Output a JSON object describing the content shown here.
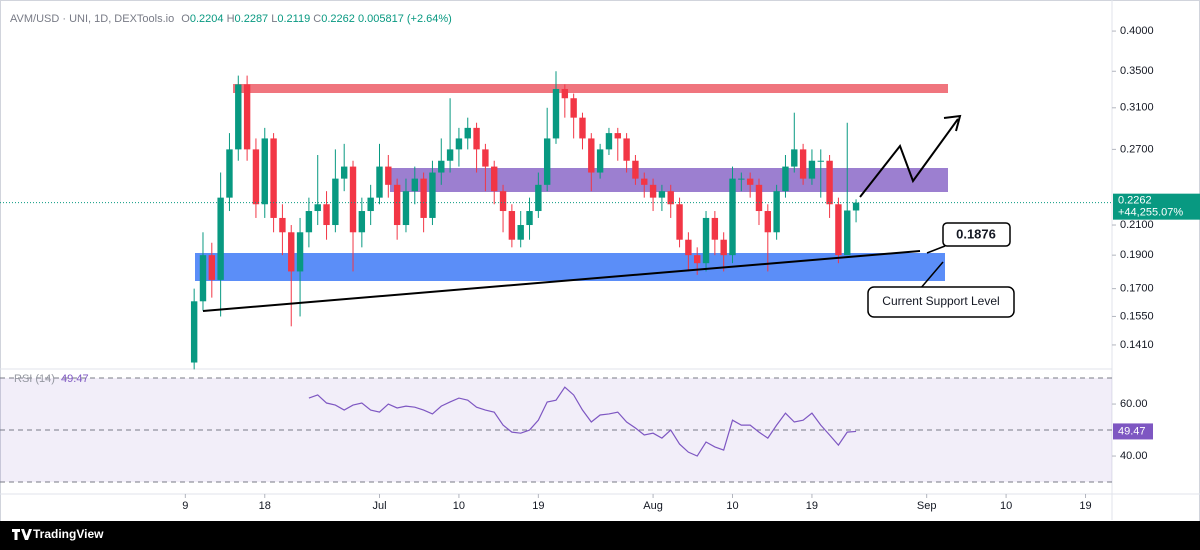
{
  "chart_data": [
    {
      "type": "candlestick",
      "symbol": "AVM/USD · UNI, 1D, DEXTools.io",
      "ohlc_labels": [
        "O",
        "H",
        "L",
        "C"
      ],
      "change": 0.005817,
      "change_pct": "(+2.64%)",
      "total_change": "+44,255.07%",
      "x": [
        "06-10",
        "06-11",
        "06-12",
        "06-13",
        "06-14",
        "06-15",
        "06-16",
        "06-17",
        "06-18",
        "06-19",
        "06-20",
        "06-21",
        "06-22",
        "06-23",
        "06-24",
        "06-25",
        "06-26",
        "06-27",
        "06-28",
        "06-29",
        "06-30",
        "07-01",
        "07-02",
        "07-03",
        "07-04",
        "07-05",
        "07-06",
        "07-07",
        "07-08",
        "07-09",
        "07-10",
        "07-11",
        "07-12",
        "07-13",
        "07-14",
        "07-15",
        "07-16",
        "07-17",
        "07-18",
        "07-19",
        "07-20",
        "07-21",
        "07-22",
        "07-23",
        "07-24",
        "07-25",
        "07-26",
        "07-27",
        "07-28",
        "07-29",
        "07-30",
        "07-31",
        "08-01",
        "08-02",
        "08-03",
        "08-04",
        "08-05",
        "08-06",
        "08-07",
        "08-08",
        "08-09",
        "08-10",
        "08-11",
        "08-12",
        "08-13",
        "08-14",
        "08-15",
        "08-16",
        "08-17",
        "08-18",
        "08-19",
        "08-20",
        "08-21",
        "08-22",
        "08-23",
        "08-24"
      ],
      "open": [
        0.133,
        0.163,
        0.19,
        0.175,
        0.23,
        0.27,
        0.335,
        0.27,
        0.225,
        0.28,
        0.215,
        0.205,
        0.18,
        0.205,
        0.22,
        0.225,
        0.21,
        0.245,
        0.255,
        0.205,
        0.22,
        0.23,
        0.255,
        0.24,
        0.21,
        0.235,
        0.245,
        0.215,
        0.25,
        0.26,
        0.27,
        0.28,
        0.29,
        0.27,
        0.255,
        0.235,
        0.22,
        0.2,
        0.21,
        0.22,
        0.24,
        0.28,
        0.33,
        0.32,
        0.3,
        0.28,
        0.25,
        0.27,
        0.285,
        0.28,
        0.26,
        0.245,
        0.24,
        0.23,
        0.235,
        0.225,
        0.2,
        0.19,
        0.185,
        0.215,
        0.2,
        0.19,
        0.245,
        0.245,
        0.24,
        0.22,
        0.205,
        0.235,
        0.255,
        0.27,
        0.245,
        0.26,
        0.26,
        0.225,
        0.19,
        0.2204
      ],
      "high": [
        0.17,
        0.205,
        0.198,
        0.25,
        0.285,
        0.345,
        0.345,
        0.28,
        0.29,
        0.285,
        0.225,
        0.21,
        0.215,
        0.23,
        0.265,
        0.235,
        0.27,
        0.275,
        0.26,
        0.23,
        0.24,
        0.275,
        0.265,
        0.245,
        0.245,
        0.255,
        0.25,
        0.26,
        0.28,
        0.32,
        0.29,
        0.3,
        0.295,
        0.275,
        0.26,
        0.24,
        0.225,
        0.22,
        0.23,
        0.25,
        0.31,
        0.35,
        0.335,
        0.325,
        0.305,
        0.285,
        0.275,
        0.29,
        0.29,
        0.285,
        0.265,
        0.25,
        0.245,
        0.24,
        0.24,
        0.23,
        0.205,
        0.195,
        0.22,
        0.22,
        0.205,
        0.255,
        0.25,
        0.25,
        0.245,
        0.225,
        0.24,
        0.265,
        0.305,
        0.275,
        0.27,
        0.27,
        0.265,
        0.23,
        0.295,
        0.2287
      ],
      "low": [
        0.13,
        0.158,
        0.165,
        0.155,
        0.22,
        0.26,
        0.26,
        0.215,
        0.215,
        0.205,
        0.19,
        0.15,
        0.155,
        0.195,
        0.21,
        0.2,
        0.205,
        0.235,
        0.18,
        0.195,
        0.21,
        0.225,
        0.23,
        0.2,
        0.205,
        0.225,
        0.205,
        0.21,
        0.24,
        0.25,
        0.255,
        0.27,
        0.25,
        0.235,
        0.225,
        0.205,
        0.195,
        0.195,
        0.2,
        0.215,
        0.235,
        0.275,
        0.3,
        0.28,
        0.27,
        0.235,
        0.245,
        0.265,
        0.26,
        0.25,
        0.24,
        0.23,
        0.22,
        0.22,
        0.215,
        0.195,
        0.18,
        0.178,
        0.18,
        0.19,
        0.18,
        0.185,
        0.235,
        0.23,
        0.21,
        0.18,
        0.2,
        0.23,
        0.25,
        0.24,
        0.24,
        0.23,
        0.215,
        0.185,
        0.19,
        0.2119
      ],
      "close": [
        0.163,
        0.19,
        0.175,
        0.23,
        0.27,
        0.335,
        0.27,
        0.225,
        0.28,
        0.215,
        0.205,
        0.18,
        0.205,
        0.22,
        0.225,
        0.21,
        0.245,
        0.255,
        0.205,
        0.22,
        0.23,
        0.255,
        0.24,
        0.21,
        0.235,
        0.245,
        0.215,
        0.25,
        0.26,
        0.27,
        0.28,
        0.29,
        0.27,
        0.255,
        0.235,
        0.22,
        0.2,
        0.21,
        0.22,
        0.24,
        0.28,
        0.33,
        0.32,
        0.3,
        0.28,
        0.25,
        0.27,
        0.285,
        0.28,
        0.26,
        0.245,
        0.24,
        0.23,
        0.235,
        0.225,
        0.2,
        0.19,
        0.185,
        0.215,
        0.2,
        0.19,
        0.245,
        0.245,
        0.24,
        0.22,
        0.205,
        0.235,
        0.255,
        0.27,
        0.245,
        0.26,
        0.26,
        0.225,
        0.19,
        0.2204,
        0.2262
      ],
      "up_color": "#089981",
      "down_color": "#f23645",
      "yscale": "log",
      "ylim": [
        0.1306,
        0.429
      ],
      "yticks": [
        {
          "value": 0.4,
          "label": "0.4000"
        },
        {
          "value": 0.35,
          "label": "0.3500"
        },
        {
          "value": 0.31,
          "label": "0.3100"
        },
        {
          "value": 0.27,
          "label": "0.2700"
        },
        {
          "value": 0.21,
          "label": "0.2100"
        },
        {
          "value": 0.19,
          "label": "0.1900"
        },
        {
          "value": 0.17,
          "label": "0.1700"
        },
        {
          "value": 0.155,
          "label": "0.1550"
        },
        {
          "value": 0.141,
          "label": "0.1410"
        }
      ],
      "xlim": [
        "05-19",
        "09-22"
      ],
      "xticks": [
        {
          "value": "06-09",
          "label": "9"
        },
        {
          "value": "06-18",
          "label": "18"
        },
        {
          "value": "07-01",
          "label": "Jul"
        },
        {
          "value": "07-10",
          "label": "10"
        },
        {
          "value": "07-19",
          "label": "19"
        },
        {
          "value": "08-01",
          "label": "Aug"
        },
        {
          "value": "08-10",
          "label": "10"
        },
        {
          "value": "08-19",
          "label": "19"
        },
        {
          "value": "09-01",
          "label": "Sep"
        },
        {
          "value": "09-10",
          "label": "10"
        },
        {
          "value": "09-19",
          "label": "19"
        }
      ],
      "grid": false
    },
    {
      "type": "line",
      "name": "RSI (14)",
      "color": "#7e57c2",
      "values": [
        null,
        null,
        null,
        null,
        null,
        null,
        null,
        null,
        null,
        null,
        null,
        null,
        null,
        62.3,
        63.5,
        60.4,
        59.6,
        57.7,
        59.6,
        60.4,
        57.7,
        56.9,
        60,
        58.5,
        59.2,
        58.8,
        57.7,
        56.2,
        59.2,
        60.8,
        62.3,
        61.5,
        58.8,
        57.7,
        56.9,
        51.9,
        49.2,
        48.8,
        50,
        53.8,
        60.8,
        61.5,
        66.5,
        63.5,
        57.7,
        53.1,
        55.8,
        56.2,
        56.9,
        53.1,
        50.8,
        48.1,
        48.8,
        46.9,
        50,
        44.6,
        41.5,
        40,
        45.4,
        43.5,
        42.3,
        53.8,
        51.9,
        51.9,
        49.2,
        46.9,
        51.9,
        56.5,
        53.1,
        53.8,
        56.5,
        51.9,
        48.1,
        44.2,
        49.2,
        49.47
      ],
      "ylim": [
        25.4,
        73.1
      ],
      "yticks": [
        {
          "value": 60,
          "label": "60.00"
        },
        {
          "value": 40,
          "label": "40.00"
        }
      ],
      "levels": [
        70,
        50,
        30
      ]
    }
  ],
  "annotations": {
    "price_box": 0.1876,
    "support_label": "Current Support Level"
  },
  "footer": "TradingView"
}
